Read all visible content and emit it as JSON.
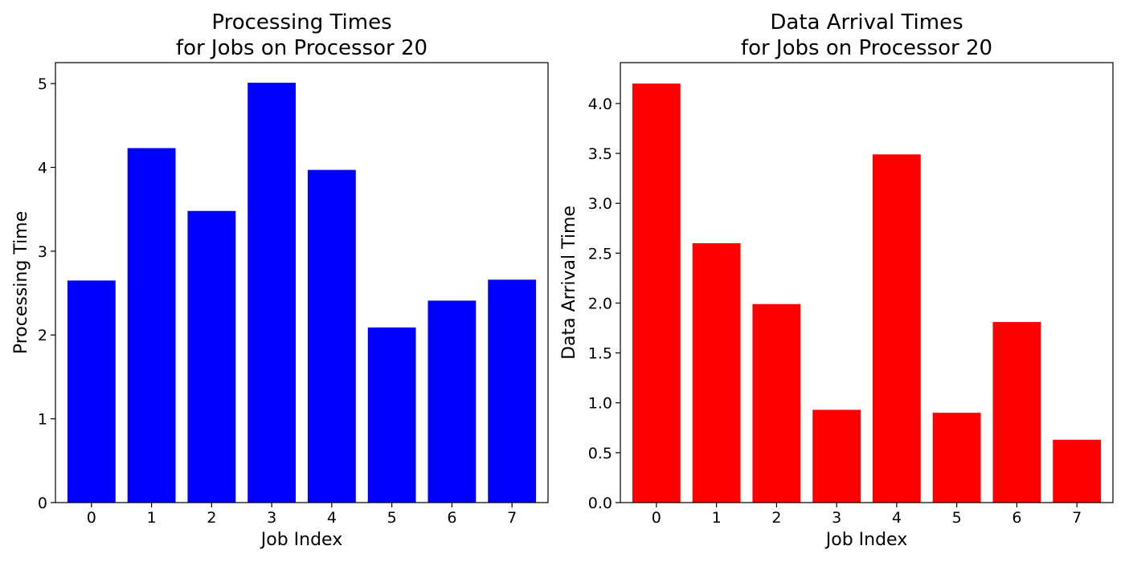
{
  "chart_data": [
    {
      "type": "bar",
      "title": [
        "Processing Times",
        "for Jobs on Processor 20"
      ],
      "xlabel": "Job Index",
      "ylabel": "Processing Time",
      "categories": [
        "0",
        "1",
        "2",
        "3",
        "4",
        "5",
        "6",
        "7"
      ],
      "values": [
        2.65,
        4.23,
        3.48,
        5.01,
        3.97,
        2.09,
        2.41,
        2.66
      ],
      "ylim": [
        0,
        5.25
      ],
      "yticks": [
        0,
        1,
        2,
        3,
        4,
        5
      ],
      "ytick_labels": [
        "0",
        "1",
        "2",
        "3",
        "4",
        "5"
      ],
      "color": "#0000ff",
      "grid": false
    },
    {
      "type": "bar",
      "title": [
        "Data Arrival Times",
        "for Jobs on Processor 20"
      ],
      "xlabel": "Job Index",
      "ylabel": "Data Arrival Time",
      "categories": [
        "0",
        "1",
        "2",
        "3",
        "4",
        "5",
        "6",
        "7"
      ],
      "values": [
        4.2,
        2.6,
        1.99,
        0.93,
        3.49,
        0.9,
        1.81,
        0.63
      ],
      "ylim": [
        0,
        4.41
      ],
      "yticks": [
        0,
        0.5,
        1,
        1.5,
        2,
        2.5,
        3,
        3.5,
        4
      ],
      "ytick_labels": [
        "0.0",
        "0.5",
        "1.0",
        "1.5",
        "2.0",
        "2.5",
        "3.0",
        "3.5",
        "4.0"
      ],
      "color": "#ff0000",
      "grid": false
    }
  ]
}
